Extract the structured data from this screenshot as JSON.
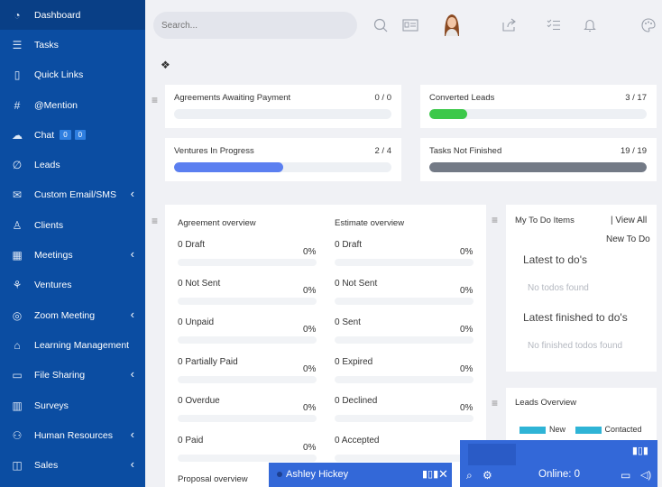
{
  "sidebar": {
    "items": [
      {
        "label": "Dashboard",
        "icon": "dashboard-icon",
        "glyph": "◔",
        "chevron": false
      },
      {
        "label": "Tasks",
        "icon": "tasks-icon",
        "glyph": "☰",
        "chevron": false
      },
      {
        "label": "Quick Links",
        "icon": "bookmark-icon",
        "glyph": "▯",
        "chevron": false
      },
      {
        "label": "@Mention",
        "icon": "hash-icon",
        "glyph": "#",
        "chevron": false
      },
      {
        "label": "Chat",
        "icon": "chat-icon",
        "glyph": "☁",
        "chevron": false
      },
      {
        "label": "Leads",
        "icon": "leads-icon",
        "glyph": "∅",
        "chevron": false
      },
      {
        "label": "Custom Email/SMS",
        "icon": "mail-icon",
        "glyph": "✉",
        "chevron": true
      },
      {
        "label": "Clients",
        "icon": "clients-icon",
        "glyph": "♙",
        "chevron": false
      },
      {
        "label": "Meetings",
        "icon": "calendar-icon",
        "glyph": "▦",
        "chevron": true
      },
      {
        "label": "Ventures",
        "icon": "sprout-icon",
        "glyph": "⚘",
        "chevron": false
      },
      {
        "label": "Zoom Meeting",
        "icon": "zoom-icon",
        "glyph": "◎",
        "chevron": true
      },
      {
        "label": "Learning Management",
        "icon": "graduation-icon",
        "glyph": "⌂",
        "chevron": false
      },
      {
        "label": "File Sharing",
        "icon": "folder-icon",
        "glyph": "▭",
        "chevron": true
      },
      {
        "label": "Surveys",
        "icon": "survey-icon",
        "glyph": "▥",
        "chevron": false
      },
      {
        "label": "Human Resources",
        "icon": "people-icon",
        "glyph": "⚇",
        "chevron": true
      },
      {
        "label": "Sales",
        "icon": "sales-icon",
        "glyph": "◫",
        "chevron": true
      }
    ],
    "chat_badges": [
      "0",
      "0"
    ]
  },
  "header": {
    "search_placeholder": "Search..."
  },
  "stats": [
    {
      "title": "Agreements Awaiting Payment",
      "count": "0 / 0",
      "fill": 0,
      "color": "#5b7ff0"
    },
    {
      "title": "Converted Leads",
      "count": "3 / 17",
      "fill": 0.176,
      "color": "#3cc84a"
    },
    {
      "title": "Ventures In Progress",
      "count": "2 / 4",
      "fill": 0.5,
      "color": "#5b7ff0"
    },
    {
      "title": "Tasks Not Finished",
      "count": "19 / 19",
      "fill": 1,
      "color": "#737a86"
    }
  ],
  "agreement_overview": {
    "title": "Agreement overview",
    "rows": [
      {
        "label": "0 Draft",
        "pct": "0%"
      },
      {
        "label": "0 Not Sent",
        "pct": "0%"
      },
      {
        "label": "0 Unpaid",
        "pct": "0%"
      },
      {
        "label": "0 Partially Paid",
        "pct": "0%"
      },
      {
        "label": "0 Overdue",
        "pct": "0%"
      },
      {
        "label": "0 Paid",
        "pct": "0%"
      }
    ]
  },
  "estimate_overview": {
    "title": "Estimate overview",
    "rows": [
      {
        "label": "0 Draft",
        "pct": "0%"
      },
      {
        "label": "0 Not Sent",
        "pct": "0%"
      },
      {
        "label": "0 Sent",
        "pct": "0%"
      },
      {
        "label": "0 Expired",
        "pct": "0%"
      },
      {
        "label": "0 Declined",
        "pct": "0%"
      },
      {
        "label": "0 Accepted",
        "pct": ""
      }
    ]
  },
  "proposal_overview": {
    "title": "Proposal overview"
  },
  "todo": {
    "title": "My To Do Items",
    "view_all": "| View All",
    "new_todo": "New To Do",
    "latest": "Latest to do's",
    "latest_empty": "No todos found",
    "finished": "Latest finished to do's",
    "finished_empty": "No finished todos found"
  },
  "leads_overview": {
    "title": "Leads Overview",
    "legend": [
      "New",
      "Contacted"
    ],
    "legend_color": "#2fb4d6"
  },
  "chat_popup": {
    "name": "Ashley Hickey"
  },
  "online_widget": {
    "label": "Online: 0"
  }
}
